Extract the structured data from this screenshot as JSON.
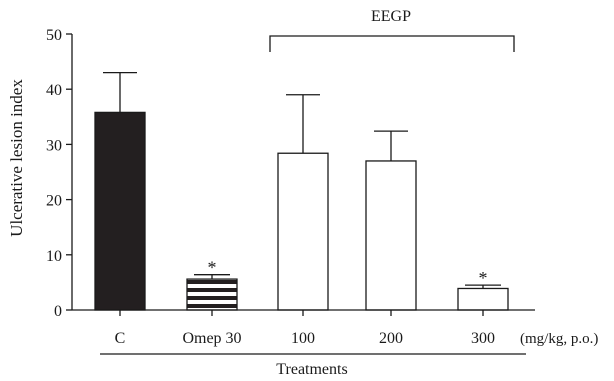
{
  "chart_data": {
    "type": "bar",
    "title": "",
    "xlabel": "Treatments",
    "ylabel": "Ulcerative lesion index",
    "ylim": [
      0,
      50
    ],
    "yticks": [
      0,
      10,
      20,
      30,
      40,
      50
    ],
    "unit_note": "(mg/kg, p.o.)",
    "group_bracket": {
      "label": "EEGP",
      "from": 2,
      "to": 4
    },
    "categories": [
      "C",
      "Omep 30",
      "100",
      "200",
      "300"
    ],
    "values": [
      35.8,
      5.6,
      28.4,
      27.0,
      3.9
    ],
    "errors": [
      7.2,
      0.8,
      10.6,
      5.4,
      0.6
    ],
    "significance": [
      "",
      "*",
      "",
      "",
      "*"
    ],
    "fills": [
      "solid",
      "striped",
      "open",
      "open",
      "open"
    ],
    "colors": {
      "solid": "#231f20",
      "open": "#ffffff",
      "stripe": "#231f20"
    },
    "grid": false,
    "legend": "none"
  }
}
